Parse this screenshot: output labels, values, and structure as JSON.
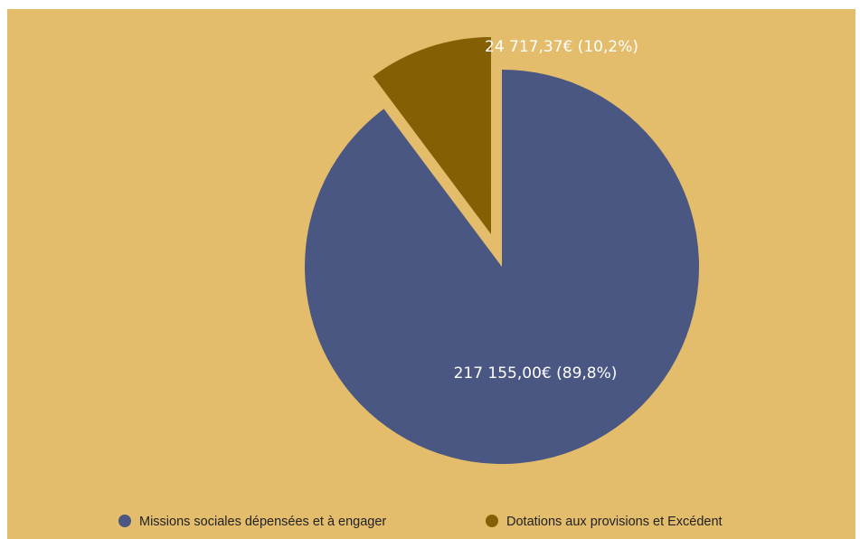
{
  "chart_data": {
    "type": "pie",
    "slices": [
      {
        "name": "Missions sociales dépensées et à engager",
        "value": 217155.0,
        "percent": 89.8,
        "label": "217 155,00€ (89,8%)",
        "color": "#4a5782",
        "exploded": false
      },
      {
        "name": "Dotations aux provisions et Excédent",
        "value": 24717.37,
        "percent": 10.2,
        "label": "24 717,37€ (10,2%)",
        "color": "#855f04",
        "exploded": true
      }
    ],
    "legend_position": "bottom",
    "background": "#e3bd6b"
  },
  "legend": {
    "items": [
      {
        "label": "Missions sociales dépensées et à engager",
        "color": "#4a5782"
      },
      {
        "label": "Dotations aux provisions et Excédent",
        "color": "#855f04"
      }
    ]
  }
}
